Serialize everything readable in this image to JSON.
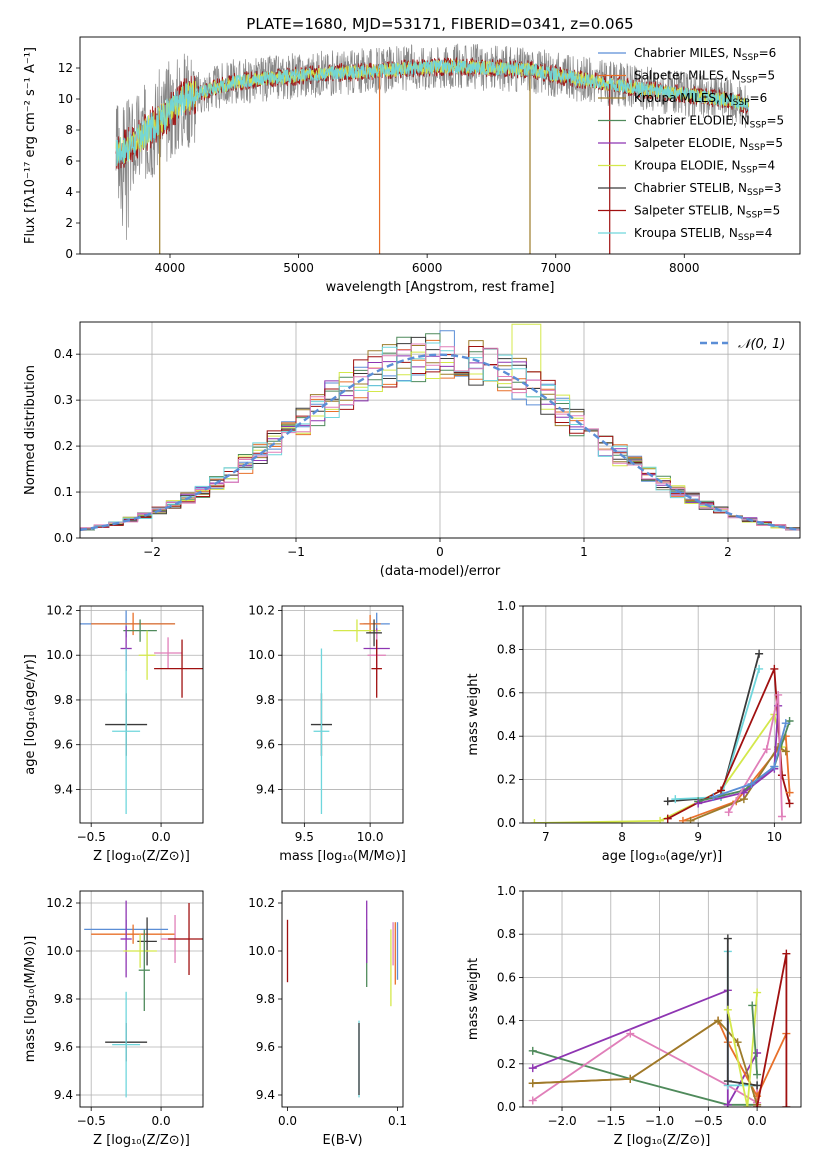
{
  "colors": {
    "chabrier_miles": "#5b8ed6",
    "salpeter_miles": "#e8702a",
    "kroupa_miles": "#9c7b2a",
    "chabrier_elodie": "#4f8a5b",
    "salpeter_elodie": "#8e35b2",
    "kroupa_elodie": "#d4e84b",
    "chabrier_stelib": "#3a3a3a",
    "salpeter_stelib": "#a01010",
    "kroupa_stelib": "#6fd6dc",
    "pink": "#e07fb9",
    "spec_gray": "#808080",
    "gaussian": "#5b8ed6"
  },
  "chart_data": [
    {
      "id": "spectrum",
      "type": "line",
      "title": "PLATE=1680, MJD=53171, FIBERID=0341, z=0.065",
      "xlabel": "wavelength [Angstrom, rest frame]",
      "ylabel": "Flux [fλ10⁻¹⁷ erg cm⁻² s⁻¹ A⁻¹]",
      "xlim": [
        3300,
        8900
      ],
      "ylim": [
        0,
        14
      ],
      "xticks": [
        "4000",
        "5000",
        "6000",
        "7000",
        "8000"
      ],
      "yticks": [
        "0",
        "2",
        "4",
        "6",
        "8",
        "10",
        "12"
      ],
      "grid": false,
      "legend_position": "right",
      "legend": [
        {
          "label": "Chabrier MILES, N",
          "sub": "SSP",
          "tail": "=6",
          "color": "chabrier_miles"
        },
        {
          "label": "Salpeter MILES, N",
          "sub": "SSP",
          "tail": "=5",
          "color": "salpeter_miles"
        },
        {
          "label": "Kroupa MILES, N",
          "sub": "SSP",
          "tail": "=6",
          "color": "kroupa_miles"
        },
        {
          "label": "Chabrier ELODIE, N",
          "sub": "SSP",
          "tail": "=5",
          "color": "chabrier_elodie"
        },
        {
          "label": "Salpeter ELODIE, N",
          "sub": "SSP",
          "tail": "=5",
          "color": "salpeter_elodie"
        },
        {
          "label": "Kroupa ELODIE, N",
          "sub": "SSP",
          "tail": "=4",
          "color": "kroupa_elodie"
        },
        {
          "label": "Chabrier STELIB, N",
          "sub": "SSP",
          "tail": "=3",
          "color": "chabrier_stelib"
        },
        {
          "label": "Salpeter STELIB, N",
          "sub": "SSP",
          "tail": "=5",
          "color": "salpeter_stelib"
        },
        {
          "label": "Kroupa STELIB, N",
          "sub": "SSP",
          "tail": "=4",
          "color": "kroupa_stelib"
        }
      ],
      "continuum": {
        "x": [
          3580,
          3700,
          3900,
          4100,
          4300,
          4500,
          4700,
          5000,
          5300,
          5600,
          5900,
          6200,
          6500,
          6800,
          7100,
          7400,
          7700,
          8000,
          8300,
          8500
        ],
        "y": [
          6.5,
          7.0,
          8.5,
          10.0,
          10.6,
          11.1,
          11.3,
          11.5,
          11.7,
          11.8,
          12.0,
          12.1,
          12.0,
          11.9,
          11.4,
          11.0,
          10.6,
          10.3,
          10.0,
          9.6
        ]
      },
      "spikes": [
        {
          "x": 3920,
          "y": 0,
          "color": "kroupa_miles"
        },
        {
          "x": 5630,
          "y": 0,
          "color": "salpeter_miles"
        },
        {
          "x": 6800,
          "y": 0,
          "color": "kroupa_miles"
        },
        {
          "x": 7420,
          "y": 0,
          "color": "salpeter_stelib"
        }
      ]
    },
    {
      "id": "residuals",
      "type": "line",
      "xlabel": "(data-model)/error",
      "ylabel": "Normed distribution",
      "xlim": [
        -2.5,
        2.5
      ],
      "ylim": [
        0,
        0.47
      ],
      "xticks": [
        "−2",
        "−1",
        "0",
        "1",
        "2"
      ],
      "yticks": [
        "0.0",
        "0.1",
        "0.2",
        "0.3",
        "0.4"
      ],
      "grid": true,
      "legend_position": "top-right",
      "legend_label": "𝒩(0, 1)",
      "gaussian": {
        "mu": 0.0,
        "sigma": 1.0
      },
      "bin_width": 0.1
    },
    {
      "id": "age_vs_Z",
      "type": "errorbar",
      "xlabel": "Z [log₁₀(Z/Z⊙)]",
      "ylabel": "age  [log₁₀(age/yr)]",
      "xlim": [
        -0.58,
        0.3
      ],
      "ylim": [
        9.25,
        10.22
      ],
      "xticks": [
        "−0.5",
        "0.0"
      ],
      "yticks": [
        "9.4",
        "9.6",
        "9.8",
        "10.0",
        "10.2"
      ],
      "grid": true,
      "points": [
        {
          "x": -0.25,
          "y": 10.14,
          "xerr": 0.35,
          "yerr": 0.06,
          "color": "chabrier_miles"
        },
        {
          "x": -0.2,
          "y": 10.14,
          "xerr": 0.3,
          "yerr": 0.05,
          "color": "salpeter_miles"
        },
        {
          "x": -0.15,
          "y": 10.11,
          "xerr": 0.12,
          "yerr": 0.05,
          "color": "chabrier_elodie"
        },
        {
          "x": -0.25,
          "y": 10.03,
          "xerr": 0.04,
          "yerr": 0.1,
          "color": "salpeter_elodie"
        },
        {
          "x": -0.1,
          "y": 10.0,
          "xerr": 0.06,
          "yerr": 0.11,
          "color": "kroupa_elodie"
        },
        {
          "x": 0.05,
          "y": 10.01,
          "xerr": 0.1,
          "yerr": 0.07,
          "color": "pink"
        },
        {
          "x": 0.15,
          "y": 9.94,
          "xerr": 0.2,
          "yerr": 0.13,
          "color": "salpeter_stelib"
        },
        {
          "x": -0.25,
          "y": 9.69,
          "xerr": 0.15,
          "yerr": 0.14,
          "color": "chabrier_stelib"
        },
        {
          "x": -0.25,
          "y": 9.66,
          "xerr": 0.1,
          "yerr": 0.37,
          "color": "kroupa_stelib"
        }
      ]
    },
    {
      "id": "age_vs_mass",
      "type": "errorbar",
      "xlabel": "mass [log₁₀(M/M⊙)]",
      "ylabel": "",
      "xlim": [
        9.33,
        10.25
      ],
      "ylim": [
        9.25,
        10.22
      ],
      "xticks": [
        "9.5",
        "10.0"
      ],
      "yticks": [
        "9.4",
        "9.6",
        "9.8",
        "10.0",
        "10.2"
      ],
      "grid": true,
      "points": [
        {
          "x": 10.05,
          "y": 10.14,
          "xerr": 0.1,
          "yerr": 0.05,
          "color": "chabrier_miles"
        },
        {
          "x": 10.0,
          "y": 10.14,
          "xerr": 0.08,
          "yerr": 0.04,
          "color": "salpeter_miles"
        },
        {
          "x": 9.9,
          "y": 10.11,
          "xerr": 0.18,
          "yerr": 0.05,
          "color": "kroupa_elodie"
        },
        {
          "x": 10.05,
          "y": 10.03,
          "xerr": 0.1,
          "yerr": 0.09,
          "color": "salpeter_elodie"
        },
        {
          "x": 10.05,
          "y": 10.0,
          "xerr": 0.07,
          "yerr": 0.11,
          "color": "pink"
        },
        {
          "x": 10.05,
          "y": 9.94,
          "xerr": 0.04,
          "yerr": 0.13,
          "color": "salpeter_stelib"
        },
        {
          "x": 10.03,
          "y": 10.1,
          "xerr": 0.06,
          "yerr": 0.06,
          "color": "chabrier_stelib"
        },
        {
          "x": 9.63,
          "y": 9.69,
          "xerr": 0.08,
          "yerr": 0.14,
          "color": "chabrier_stelib"
        },
        {
          "x": 9.63,
          "y": 9.66,
          "xerr": 0.06,
          "yerr": 0.37,
          "color": "kroupa_stelib"
        }
      ]
    },
    {
      "id": "weight_vs_age",
      "type": "line",
      "xlabel": "age  [log₁₀(age/yr)]",
      "ylabel": "mass weight",
      "xlim": [
        6.7,
        10.35
      ],
      "ylim": [
        0,
        1.0
      ],
      "xticks": [
        "7",
        "8",
        "9",
        "10"
      ],
      "yticks": [
        "0.0",
        "0.2",
        "0.4",
        "0.6",
        "0.8",
        "1.0"
      ],
      "grid": true,
      "series": [
        {
          "color": "kroupa_elodie",
          "x": [
            6.85,
            8.5,
            9.3,
            10.0,
            10.1
          ],
          "y": [
            0.0,
            0.01,
            0.15,
            0.5,
            0.35
          ]
        },
        {
          "color": "chabrier_stelib",
          "x": [
            8.6,
            9.3,
            9.8
          ],
          "y": [
            0.1,
            0.12,
            0.78
          ]
        },
        {
          "color": "kroupa_stelib",
          "x": [
            8.7,
            9.3,
            9.8
          ],
          "y": [
            0.11,
            0.12,
            0.71
          ]
        },
        {
          "color": "salpeter_stelib",
          "x": [
            8.6,
            9.3,
            10.0,
            10.1,
            10.2
          ],
          "y": [
            0.02,
            0.15,
            0.71,
            0.22,
            0.09
          ]
        },
        {
          "color": "salpeter_miles",
          "x": [
            8.8,
            9.5,
            10.05,
            10.15,
            10.2
          ],
          "y": [
            0.01,
            0.1,
            0.34,
            0.4,
            0.14
          ]
        },
        {
          "color": "kroupa_miles",
          "x": [
            8.9,
            9.6,
            10.05,
            10.15
          ],
          "y": [
            0.01,
            0.11,
            0.35,
            0.33
          ]
        },
        {
          "color": "chabrier_elodie",
          "x": [
            9.0,
            9.6,
            10.0,
            10.2
          ],
          "y": [
            0.1,
            0.15,
            0.26,
            0.47
          ]
        },
        {
          "color": "salpeter_elodie",
          "x": [
            9.0,
            9.6,
            10.0,
            10.05
          ],
          "y": [
            0.09,
            0.14,
            0.25,
            0.54
          ]
        },
        {
          "color": "pink",
          "x": [
            9.4,
            9.9,
            10.05,
            10.1
          ],
          "y": [
            0.05,
            0.34,
            0.59,
            0.03
          ]
        },
        {
          "color": "chabrier_miles",
          "x": [
            9.2,
            9.7,
            10.0,
            10.15
          ],
          "y": [
            0.12,
            0.18,
            0.26,
            0.46
          ]
        }
      ]
    },
    {
      "id": "mass_vs_Z",
      "type": "errorbar",
      "xlabel": "Z [log₁₀(Z/Z⊙)]",
      "ylabel": "mass [log₁₀(M/M⊙)]",
      "xlim": [
        -0.58,
        0.3
      ],
      "ylim": [
        9.35,
        10.25
      ],
      "xticks": [
        "−0.5",
        "0.0"
      ],
      "yticks": [
        "9.4",
        "9.6",
        "9.8",
        "10.0",
        "10.2"
      ],
      "grid": true,
      "points": [
        {
          "x": -0.25,
          "y": 10.09,
          "xerr": 0.3,
          "yerr": 0.04,
          "color": "chabrier_miles"
        },
        {
          "x": -0.2,
          "y": 10.07,
          "xerr": 0.3,
          "yerr": 0.04,
          "color": "salpeter_miles"
        },
        {
          "x": -0.25,
          "y": 10.05,
          "xerr": 0.04,
          "yerr": 0.16,
          "color": "salpeter_elodie"
        },
        {
          "x": -0.1,
          "y": 10.04,
          "xerr": 0.07,
          "yerr": 0.1,
          "color": "chabrier_stelib"
        },
        {
          "x": -0.15,
          "y": 10.0,
          "xerr": 0.12,
          "yerr": 0.07,
          "color": "kroupa_elodie"
        },
        {
          "x": -0.12,
          "y": 9.92,
          "xerr": 0.04,
          "yerr": 0.17,
          "color": "chabrier_elodie"
        },
        {
          "x": 0.1,
          "y": 10.05,
          "xerr": 0.1,
          "yerr": 0.1,
          "color": "pink"
        },
        {
          "x": 0.2,
          "y": 10.05,
          "xerr": 0.15,
          "yerr": 0.15,
          "color": "salpeter_stelib"
        },
        {
          "x": -0.25,
          "y": 9.62,
          "xerr": 0.15,
          "yerr": 0.08,
          "color": "chabrier_stelib"
        },
        {
          "x": -0.25,
          "y": 9.61,
          "xerr": 0.1,
          "yerr": 0.22,
          "color": "kroupa_stelib"
        }
      ]
    },
    {
      "id": "mass_vs_ebv",
      "type": "errorbar",
      "xlabel": "E(B-V)",
      "ylabel": "",
      "xlim": [
        -0.005,
        0.105
      ],
      "ylim": [
        9.35,
        10.25
      ],
      "xticks": [
        "0.0",
        "0.1"
      ],
      "yticks": [
        "9.4",
        "9.6",
        "9.8",
        "10.0",
        "10.2"
      ],
      "grid": false,
      "points": [
        {
          "x": 0.0,
          "y": 10.0,
          "xerr": 0,
          "yerr": 0.13,
          "color": "salpeter_stelib"
        },
        {
          "x": 0.065,
          "y": 9.55,
          "xerr": 0,
          "yerr": 0.16,
          "color": "kroupa_stelib"
        },
        {
          "x": 0.065,
          "y": 9.55,
          "xerr": 0,
          "yerr": 0.15,
          "color": "chabrier_stelib"
        },
        {
          "x": 0.072,
          "y": 9.97,
          "xerr": 0,
          "yerr": 0.12,
          "color": "chabrier_elodie"
        },
        {
          "x": 0.072,
          "y": 10.08,
          "xerr": 0,
          "yerr": 0.13,
          "color": "salpeter_elodie"
        },
        {
          "x": 0.094,
          "y": 9.93,
          "xerr": 0,
          "yerr": 0.16,
          "color": "kroupa_elodie"
        },
        {
          "x": 0.096,
          "y": 10.03,
          "xerr": 0,
          "yerr": 0.09,
          "color": "pink"
        },
        {
          "x": 0.098,
          "y": 9.99,
          "xerr": 0,
          "yerr": 0.13,
          "color": "salpeter_miles"
        },
        {
          "x": 0.1,
          "y": 10.0,
          "xerr": 0,
          "yerr": 0.12,
          "color": "chabrier_miles"
        }
      ]
    },
    {
      "id": "weight_vs_Z",
      "type": "line",
      "xlabel": "Z [log₁₀(Z/Z⊙)]",
      "ylabel": "mass weight",
      "xlim": [
        -2.4,
        0.45
      ],
      "ylim": [
        0,
        1.0
      ],
      "xticks": [
        "−2.0",
        "−1.5",
        "−1.0",
        "−0.5",
        "0.0"
      ],
      "yticks": [
        "0.0",
        "0.2",
        "0.4",
        "0.6",
        "0.8",
        "1.0"
      ],
      "grid": true,
      "series": [
        {
          "color": "chabrier_elodie",
          "x": [
            -2.3,
            -1.3,
            -0.3,
            0.0
          ],
          "y": [
            0.26,
            0.13,
            0.01,
            0.01
          ]
        },
        {
          "color": "salpeter_elodie",
          "x": [
            -2.3,
            -0.3,
            -0.3,
            0.0
          ],
          "y": [
            0.18,
            0.54,
            0.01,
            0.25
          ]
        },
        {
          "color": "pink",
          "x": [
            -2.3,
            -1.3,
            -0.3,
            0.0,
            0.0
          ],
          "y": [
            0.03,
            0.34,
            0.1,
            0.02,
            0.1
          ]
        },
        {
          "color": "salpeter_miles",
          "x": [
            -2.3,
            -1.3,
            -0.4,
            -0.3,
            0.0,
            0.3
          ],
          "y": [
            0.11,
            0.13,
            0.4,
            0.3,
            0.05,
            0.34
          ]
        },
        {
          "color": "kroupa_miles",
          "x": [
            -2.3,
            -1.3,
            -0.4,
            -0.2,
            0.0
          ],
          "y": [
            0.11,
            0.13,
            0.4,
            0.3,
            0.01
          ]
        },
        {
          "color": "kroupa_stelib",
          "x": [
            -0.3,
            -0.3,
            0.0
          ],
          "y": [
            0.72,
            0.1,
            0.1
          ]
        },
        {
          "color": "chabrier_stelib",
          "x": [
            -0.3,
            -0.3,
            0.0
          ],
          "y": [
            0.78,
            0.12,
            0.1
          ]
        },
        {
          "color": "kroupa_elodie",
          "x": [
            -0.3,
            -0.1,
            0.0
          ],
          "y": [
            0.45,
            0.0,
            0.53
          ]
        },
        {
          "color": "salpeter_stelib",
          "x": [
            0.0,
            0.3,
            0.3
          ],
          "y": [
            0.0,
            0.71,
            0.0
          ]
        },
        {
          "color": "chabrier_elodie",
          "x": [
            -0.05,
            0.0
          ],
          "y": [
            0.47,
            0.15
          ]
        }
      ]
    }
  ]
}
